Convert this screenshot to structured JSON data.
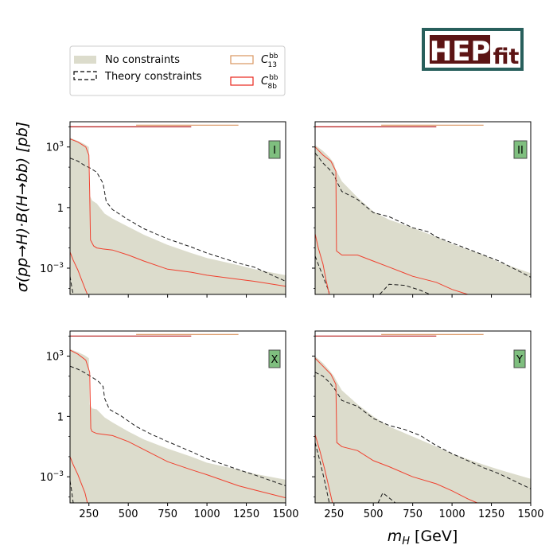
{
  "logo": {
    "main": "HEP",
    "sub": "fit",
    "frame_color": "#285f5c",
    "bg_color": "#5c1414"
  },
  "legend": {
    "entries": [
      {
        "label": "No constraints",
        "style": "fill",
        "color": "#dcdccc"
      },
      {
        "label": "Theory constraints",
        "style": "dashed",
        "color": "#000000"
      },
      {
        "label": "C",
        "sup": "bb",
        "sub": "13",
        "style": "outline",
        "color": "#d9955f"
      },
      {
        "label": "C",
        "sup": "bb",
        "sub": "8b",
        "style": "outline",
        "color": "#e8261c"
      }
    ]
  },
  "ylabel": "σ(pp→H)·B(H→bb) [pb]",
  "xlabel": "m_H [GeV]",
  "colors": {
    "band": "#dcdccc",
    "theory": "#1a1a1a",
    "c8b": "#f0412f",
    "c13": "#d9955f",
    "badge": "#7fbf7f"
  },
  "chart_data": {
    "type": "line",
    "x_scale": "linear",
    "y_scale": "log",
    "xlim": [
      130,
      1500
    ],
    "ylim_log10": [
      -4.3,
      4.25
    ],
    "xticks": [
      250,
      500,
      750,
      1000,
      1250,
      1500
    ],
    "xtick_labels": [
      "250",
      "500",
      "750",
      "1000",
      "1250",
      "1500"
    ],
    "yticks_log10": [
      3,
      0,
      -3
    ],
    "ytick_labels": [
      "10^3",
      "1",
      "10^-3"
    ],
    "panels": [
      {
        "name": "I",
        "band_upper": [
          [
            130,
            3.45
          ],
          [
            180,
            3.3
          ],
          [
            220,
            3.15
          ],
          [
            250,
            3.0
          ],
          [
            255,
            0.6
          ],
          [
            270,
            0.35
          ],
          [
            300,
            0.2
          ],
          [
            350,
            -0.3
          ],
          [
            400,
            -0.55
          ],
          [
            500,
            -0.95
          ],
          [
            600,
            -1.35
          ],
          [
            750,
            -1.85
          ],
          [
            900,
            -2.25
          ],
          [
            1000,
            -2.5
          ],
          [
            1200,
            -2.85
          ],
          [
            1300,
            -3.05
          ],
          [
            1500,
            -3.35
          ]
        ],
        "theory": [
          [
            130,
            2.45
          ],
          [
            180,
            2.3
          ],
          [
            220,
            2.1
          ],
          [
            260,
            1.95
          ],
          [
            300,
            1.75
          ],
          [
            340,
            1.2
          ],
          [
            360,
            0.3
          ],
          [
            400,
            -0.1
          ],
          [
            500,
            -0.6
          ],
          [
            600,
            -1.05
          ],
          [
            750,
            -1.55
          ],
          [
            900,
            -1.95
          ],
          [
            1000,
            -2.25
          ],
          [
            1200,
            -2.75
          ],
          [
            1300,
            -2.95
          ],
          [
            1500,
            -3.65
          ]
        ],
        "theory_low": [
          [
            130,
            -3.4
          ],
          [
            140,
            -3.9
          ],
          [
            150,
            -4.3
          ]
        ],
        "c8b_high": [
          [
            130,
            3.4
          ],
          [
            180,
            3.25
          ],
          [
            230,
            3.0
          ],
          [
            250,
            2.6
          ],
          [
            255,
            0.8
          ],
          [
            260,
            -1.6
          ],
          [
            280,
            -1.9
          ],
          [
            300,
            -2.0
          ],
          [
            340,
            -2.05
          ],
          [
            400,
            -2.1
          ],
          [
            500,
            -2.35
          ],
          [
            600,
            -2.65
          ],
          [
            750,
            -3.05
          ],
          [
            900,
            -3.2
          ],
          [
            1000,
            -3.35
          ],
          [
            1200,
            -3.55
          ],
          [
            1300,
            -3.65
          ],
          [
            1500,
            -3.9
          ]
        ],
        "c8b_low": [
          [
            130,
            -2.2
          ],
          [
            150,
            -2.6
          ],
          [
            180,
            -3.1
          ],
          [
            200,
            -3.5
          ],
          [
            225,
            -4.0
          ],
          [
            240,
            -4.3
          ]
        ],
        "c8b_bar": [
          [
            130,
            900
          ]
        ],
        "c13_bar": [
          [
            550,
            1200
          ]
        ],
        "c8b_top_log10": 4.0,
        "c13_top_log10": 4.08
      },
      {
        "name": "II",
        "band_upper": [
          [
            130,
            3.1
          ],
          [
            180,
            2.8
          ],
          [
            220,
            2.5
          ],
          [
            250,
            2.2
          ],
          [
            260,
            1.9
          ],
          [
            300,
            1.3
          ],
          [
            400,
            0.5
          ],
          [
            500,
            -0.2
          ],
          [
            600,
            -0.6
          ],
          [
            750,
            -1.0
          ],
          [
            900,
            -1.45
          ],
          [
            1000,
            -1.8
          ],
          [
            1200,
            -2.35
          ],
          [
            1300,
            -2.7
          ],
          [
            1500,
            -3.25
          ]
        ],
        "theory": [
          [
            130,
            2.7
          ],
          [
            180,
            2.2
          ],
          [
            220,
            1.9
          ],
          [
            250,
            1.6
          ],
          [
            270,
            1.25
          ],
          [
            300,
            0.8
          ],
          [
            400,
            0.4
          ],
          [
            500,
            -0.25
          ],
          [
            600,
            -0.45
          ],
          [
            750,
            -1.0
          ],
          [
            850,
            -1.2
          ],
          [
            900,
            -1.45
          ],
          [
            1000,
            -1.75
          ],
          [
            1200,
            -2.35
          ],
          [
            1300,
            -2.65
          ],
          [
            1500,
            -3.45
          ]
        ],
        "theory_low": [
          [
            130,
            -2.4
          ],
          [
            160,
            -3.0
          ],
          [
            190,
            -3.6
          ],
          [
            220,
            -4.2
          ]
        ],
        "theory_bump": [
          [
            540,
            -4.3
          ],
          [
            600,
            -3.8
          ],
          [
            700,
            -3.85
          ],
          [
            800,
            -4.1
          ],
          [
            860,
            -4.3
          ]
        ],
        "c8b_high": [
          [
            130,
            3.0
          ],
          [
            180,
            2.6
          ],
          [
            230,
            2.3
          ],
          [
            262,
            1.8
          ],
          [
            266,
            -2.15
          ],
          [
            300,
            -2.35
          ],
          [
            400,
            -2.35
          ],
          [
            500,
            -2.65
          ],
          [
            600,
            -2.95
          ],
          [
            750,
            -3.4
          ],
          [
            900,
            -3.7
          ],
          [
            1000,
            -4.05
          ],
          [
            1100,
            -4.3
          ]
        ],
        "c8b_low": [
          [
            130,
            -1.3
          ],
          [
            150,
            -2.0
          ],
          [
            180,
            -2.8
          ],
          [
            200,
            -3.6
          ],
          [
            220,
            -4.3
          ]
        ],
        "c8b_bar": [
          [
            130,
            900
          ]
        ],
        "c13_bar": [
          [
            550,
            1200
          ]
        ],
        "c8b_top_log10": 4.0,
        "c13_top_log10": 4.08
      },
      {
        "name": "X",
        "band_upper": [
          [
            130,
            3.35
          ],
          [
            180,
            3.2
          ],
          [
            220,
            3.05
          ],
          [
            250,
            2.9
          ],
          [
            255,
            0.6
          ],
          [
            270,
            0.4
          ],
          [
            300,
            0.35
          ],
          [
            350,
            -0.05
          ],
          [
            400,
            -0.3
          ],
          [
            500,
            -0.75
          ],
          [
            600,
            -1.15
          ],
          [
            750,
            -1.6
          ],
          [
            900,
            -2.0
          ],
          [
            1000,
            -2.3
          ],
          [
            1200,
            -2.65
          ],
          [
            1300,
            -2.85
          ],
          [
            1500,
            -3.15
          ]
        ],
        "theory": [
          [
            130,
            2.5
          ],
          [
            180,
            2.35
          ],
          [
            230,
            2.15
          ],
          [
            270,
            1.95
          ],
          [
            310,
            1.75
          ],
          [
            340,
            1.5
          ],
          [
            350,
            0.9
          ],
          [
            380,
            0.35
          ],
          [
            450,
            0.05
          ],
          [
            550,
            -0.5
          ],
          [
            650,
            -0.9
          ],
          [
            750,
            -1.25
          ],
          [
            900,
            -1.75
          ],
          [
            1000,
            -2.1
          ],
          [
            1200,
            -2.65
          ],
          [
            1300,
            -2.9
          ],
          [
            1500,
            -3.45
          ]
        ],
        "theory_low": [
          [
            130,
            -3.2
          ],
          [
            140,
            -3.7
          ],
          [
            150,
            -4.3
          ]
        ],
        "c8b_high": [
          [
            130,
            3.3
          ],
          [
            180,
            3.1
          ],
          [
            230,
            2.8
          ],
          [
            255,
            2.2
          ],
          [
            262,
            -0.6
          ],
          [
            270,
            -0.75
          ],
          [
            300,
            -0.85
          ],
          [
            350,
            -0.9
          ],
          [
            400,
            -0.95
          ],
          [
            500,
            -1.25
          ],
          [
            600,
            -1.65
          ],
          [
            750,
            -2.25
          ],
          [
            900,
            -2.65
          ],
          [
            1000,
            -2.9
          ],
          [
            1200,
            -3.45
          ],
          [
            1300,
            -3.65
          ],
          [
            1500,
            -4.05
          ]
        ],
        "c8b_low": [
          [
            130,
            -2.0
          ],
          [
            150,
            -2.4
          ],
          [
            180,
            -2.9
          ],
          [
            200,
            -3.3
          ],
          [
            225,
            -3.8
          ],
          [
            240,
            -4.3
          ]
        ],
        "c8b_bar": [
          [
            130,
            900
          ]
        ],
        "c13_bar": [
          [
            550,
            1200
          ]
        ],
        "c8b_top_log10": 4.0,
        "c13_top_log10": 4.08
      },
      {
        "name": "Y",
        "band_upper": [
          [
            130,
            3.0
          ],
          [
            180,
            2.65
          ],
          [
            220,
            2.3
          ],
          [
            250,
            2.0
          ],
          [
            270,
            1.7
          ],
          [
            300,
            1.3
          ],
          [
            400,
            0.6
          ],
          [
            500,
            0.0
          ],
          [
            600,
            -0.5
          ],
          [
            750,
            -1.0
          ],
          [
            900,
            -1.5
          ],
          [
            1000,
            -1.85
          ],
          [
            1200,
            -2.4
          ],
          [
            1300,
            -2.65
          ],
          [
            1500,
            -3.1
          ]
        ],
        "theory": [
          [
            130,
            2.2
          ],
          [
            180,
            2.0
          ],
          [
            220,
            1.7
          ],
          [
            260,
            1.3
          ],
          [
            300,
            0.8
          ],
          [
            400,
            0.5
          ],
          [
            500,
            -0.1
          ],
          [
            600,
            -0.45
          ],
          [
            700,
            -0.65
          ],
          [
            800,
            -0.95
          ],
          [
            900,
            -1.45
          ],
          [
            1000,
            -1.85
          ],
          [
            1100,
            -2.2
          ],
          [
            1200,
            -2.55
          ],
          [
            1300,
            -2.85
          ],
          [
            1500,
            -3.6
          ]
        ],
        "theory_low": [
          [
            130,
            -1.3
          ],
          [
            160,
            -2.2
          ],
          [
            190,
            -3.2
          ],
          [
            220,
            -4.3
          ]
        ],
        "theory_bump": [
          [
            530,
            -4.3
          ],
          [
            560,
            -3.8
          ],
          [
            600,
            -4.05
          ],
          [
            640,
            -4.3
          ]
        ],
        "c8b_high": [
          [
            130,
            2.9
          ],
          [
            180,
            2.5
          ],
          [
            230,
            2.1
          ],
          [
            262,
            1.6
          ],
          [
            268,
            -1.3
          ],
          [
            300,
            -1.5
          ],
          [
            400,
            -1.7
          ],
          [
            500,
            -2.2
          ],
          [
            600,
            -2.5
          ],
          [
            750,
            -3.0
          ],
          [
            900,
            -3.35
          ],
          [
            1000,
            -3.7
          ],
          [
            1100,
            -4.1
          ],
          [
            1160,
            -4.3
          ]
        ],
        "c8b_low": [
          [
            130,
            -0.9
          ],
          [
            160,
            -1.7
          ],
          [
            190,
            -2.6
          ],
          [
            220,
            -3.6
          ],
          [
            240,
            -4.3
          ]
        ],
        "c8b_bar": [
          [
            130,
            900
          ]
        ],
        "c13_bar": [
          [
            550,
            1200
          ]
        ],
        "c8b_top_log10": 4.0,
        "c13_top_log10": 4.08
      }
    ]
  }
}
